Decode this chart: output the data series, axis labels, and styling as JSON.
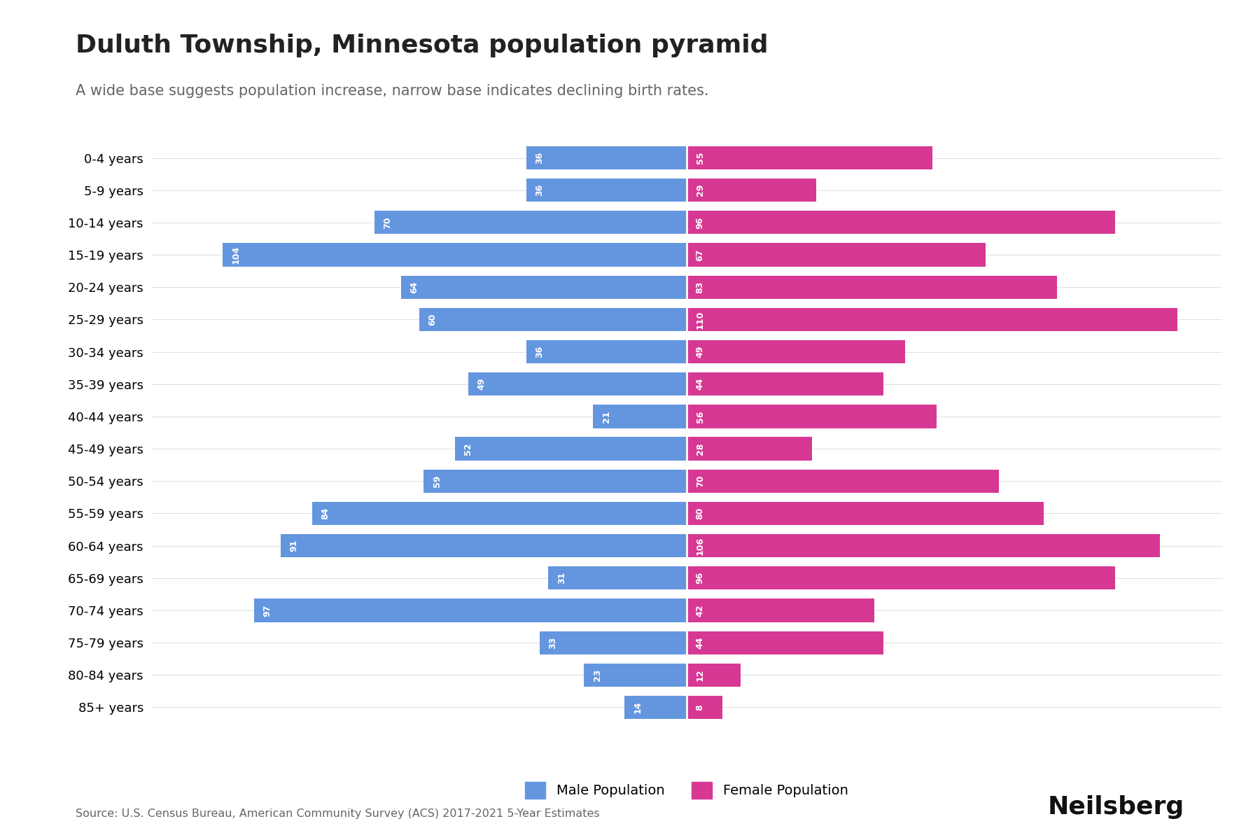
{
  "title": "Duluth Township, Minnesota population pyramid",
  "subtitle": "A wide base suggests population increase, narrow base indicates declining birth rates.",
  "source": "Source: U.S. Census Bureau, American Community Survey (ACS) 2017-2021 5-Year Estimates",
  "brand": "Neilsberg",
  "age_groups": [
    "0-4 years",
    "5-9 years",
    "10-14 years",
    "15-19 years",
    "20-24 years",
    "25-29 years",
    "30-34 years",
    "35-39 years",
    "40-44 years",
    "45-49 years",
    "50-54 years",
    "55-59 years",
    "60-64 years",
    "65-69 years",
    "70-74 years",
    "75-79 years",
    "80-84 years",
    "85+ years"
  ],
  "male": [
    36,
    36,
    70,
    104,
    64,
    60,
    36,
    49,
    21,
    52,
    59,
    84,
    91,
    31,
    97,
    33,
    23,
    14
  ],
  "female": [
    55,
    29,
    96,
    67,
    83,
    110,
    49,
    44,
    56,
    28,
    70,
    80,
    106,
    96,
    42,
    44,
    12,
    8
  ],
  "male_color": "#6496E0",
  "female_color": "#D63894",
  "background_color": "#ffffff",
  "bar_height": 0.72,
  "xlim": 120,
  "title_fontsize": 26,
  "subtitle_fontsize": 15,
  "label_fontsize": 13,
  "tick_fontsize": 13,
  "legend_fontsize": 14,
  "bar_label_fontsize": 9
}
